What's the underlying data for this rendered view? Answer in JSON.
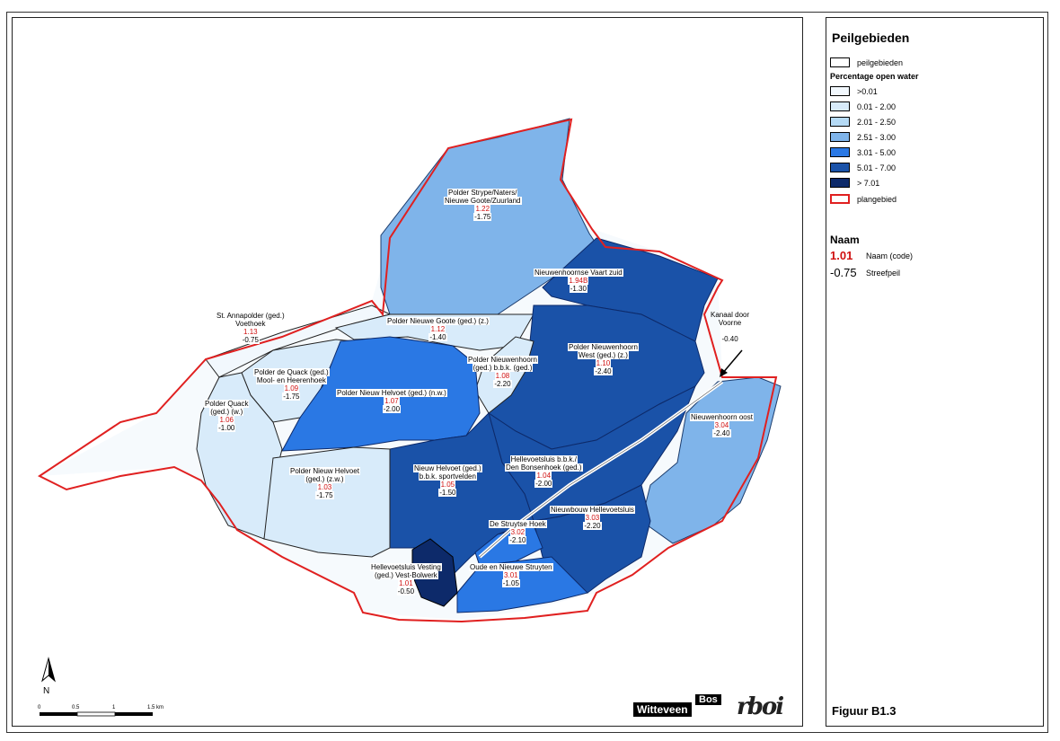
{
  "legend": {
    "title": "Peilgebieden",
    "peilgebieden_label": "peilgebieden",
    "open_water_title": "Percentage open water",
    "classes": [
      {
        "label": ">0.01",
        "color": "#f2f8fd"
      },
      {
        "label": "0.01 - 2.00",
        "color": "#d8ebfa"
      },
      {
        "label": "2.01 - 2.50",
        "color": "#b5daf5"
      },
      {
        "label": "2.51 - 3.00",
        "color": "#7fb4ea"
      },
      {
        "label": "3.01 - 5.00",
        "color": "#2a78e4"
      },
      {
        "label": "5.01 - 7.00",
        "color": "#1a52a8"
      },
      {
        "label": "> 7.01",
        "color": "#0d2a6a"
      }
    ],
    "plangebied_label": "plangebied",
    "plangebied_color": "#e02020",
    "naam_title": "Naam",
    "naam_code_example": "1.01",
    "naam_code_label": "Naam (code)",
    "streefpeil_example": "-0.75",
    "streefpeil_label": "Streefpeil",
    "figure_label": "Figuur B1.3"
  },
  "areas": [
    {
      "name1": "Polder Strype/Naters/",
      "name2": "Nieuwe Goote/Zuurland",
      "code": "1.22",
      "peil": "-1.75",
      "class": 3
    },
    {
      "name1": "Nieuwenhoornse Vaart zuid",
      "name2": "",
      "code": "1.94B",
      "peil": "-1.30",
      "class": 5
    },
    {
      "name1": "St. Annapolder (ged.)",
      "name2": "Voethoek",
      "code": "1.13",
      "peil": "-0.75",
      "class": 0
    },
    {
      "name1": "Polder Nieuwe Goote (ged.) (z.)",
      "name2": "",
      "code": "1.12",
      "peil": "-1.40",
      "class": 1
    },
    {
      "name1": "Polder Nieuwenhoorn",
      "name2": "West (ged.) (z.)",
      "code": "1.10",
      "peil": "-2.40",
      "class": 5
    },
    {
      "name1": "Polder de Quack (ged.)",
      "name2": "Mool- en Heerenhoek",
      "code": "1.09",
      "peil": "-1.75",
      "class": 1
    },
    {
      "name1": "Polder Nieuwenhoorn",
      "name2": "(ged.) b.b.k. (ged.)",
      "code": "1.08",
      "peil": "-2.20",
      "class": 1
    },
    {
      "name1": "Polder Nieuw Helvoet (ged.) (n.w.)",
      "name2": "",
      "code": "1.07",
      "peil": "-2.00",
      "class": 4
    },
    {
      "name1": "Polder Quack",
      "name2": "(ged.) (w.)",
      "code": "1.06",
      "peil": "-1.00",
      "class": 1
    },
    {
      "name1": "Nieuwenhoorn oost",
      "name2": "",
      "code": "3.04",
      "peil": "-2.40",
      "class": 3
    },
    {
      "name1": "Hellevoetsluis b.b.k./",
      "name2": "Den Bonsenhoek (ged.)",
      "code": "1.04",
      "peil": "-2.00",
      "class": 5
    },
    {
      "name1": "Nieuw Helvoet (ged.)",
      "name2": "b.b.k. sportvelden",
      "code": "1.05",
      "peil": "-1.50",
      "class": 5
    },
    {
      "name1": "Polder Nieuw Helvoet",
      "name2": "(ged.) (z.w.)",
      "code": "1.03",
      "peil": "-1.75",
      "class": 1
    },
    {
      "name1": "Nieuwbouw Hellevoetsluis",
      "name2": "",
      "code": "3.03",
      "peil": "-2.20",
      "class": 5
    },
    {
      "name1": "De Struytse Hoek",
      "name2": "",
      "code": "3.02",
      "peil": "-2.10",
      "class": 4
    },
    {
      "name1": "Oude en Nieuwe Struyten",
      "name2": "",
      "code": "3.01",
      "peil": "-1.05",
      "class": 4
    },
    {
      "name1": "Hellevoetsluis Vesting",
      "name2": "(ged.) Vest-Bolwerk",
      "code": "1.01",
      "peil": "-0.50",
      "class": 6
    }
  ],
  "kanaal": {
    "line1": "Kanaal door",
    "line2": "Voorne",
    "peil": "-0.40"
  },
  "scale": {
    "ticks": [
      "0",
      "0.5",
      "1",
      "1.5 km"
    ]
  },
  "north": "N",
  "logos": {
    "witteveen": "Witteveen",
    "bos": "Bos",
    "rboi": "rboi"
  }
}
